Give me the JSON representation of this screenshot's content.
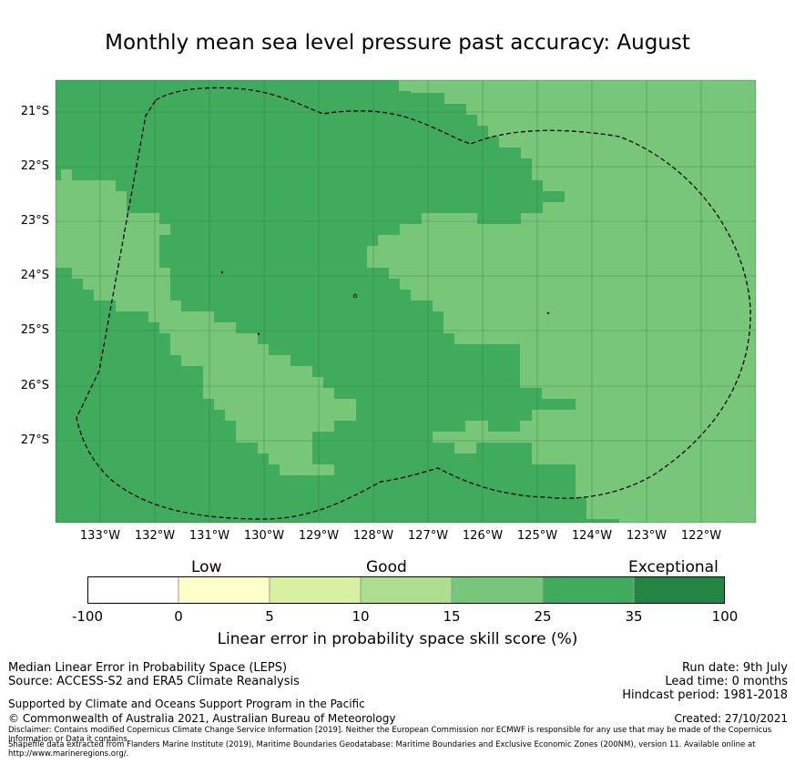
{
  "title": "Monthly mean sea level pressure past accuracy: August",
  "colors": {
    "good_light": "#a8d97e",
    "good_mid": "#78c679",
    "good_dark": "#41ab5d",
    "exceptional": "#238443",
    "low": "#ffffcc",
    "low_good": "#d9f0a3"
  },
  "map": {
    "lon_labels": [
      "133°W",
      "132°W",
      "131°W",
      "130°W",
      "129°W",
      "128°W",
      "127°W",
      "126°W",
      "125°W",
      "124°W",
      "123°W",
      "122°W"
    ],
    "lat_labels": [
      "21°S",
      "22°S",
      "23°S",
      "24°S",
      "25°S",
      "26°S",
      "27°S"
    ],
    "boundary": "dashed maritime boundary (EEZ)"
  },
  "colorbar": {
    "categories": [
      "Low",
      "Good",
      "Exceptional"
    ],
    "ticks": [
      "-100",
      "0",
      "5",
      "10",
      "15",
      "25",
      "35",
      "100"
    ],
    "colors": [
      "#ffffff",
      "#ffffcc",
      "#d9f0a3",
      "#addd8e",
      "#78c679",
      "#41ab5d",
      "#238443"
    ],
    "label": "Linear error in probability space skill score (%)"
  },
  "footer": {
    "line1": "Median Linear Error in Probability Space (LEPS)",
    "line2": "Source: ACCESS-S2 and ERA5 Climate Reanalysis",
    "run_date": "Run date: 9th July",
    "lead_time": "Lead time: 0 months",
    "hindcast": "Hindcast period: 1981-2018",
    "supported": "Supported by Climate and Oceans Support Program in the Pacific",
    "copyright": "© Commonwealth of Australia 2021, Australian Bureau of Meteorology",
    "created": "Created: 27/10/2021",
    "disclaimer": "Disclaimer: Contains modified Copernicus Climate Change Service Information [2019]. Neither the European Commission nor ECMWF is responsible for any use that may be made of the Copernicus Information or Data it contains.",
    "shapefile": "Shapefile data extracted from Flanders Marine Institute (2019), Maritime Boundaries Geodatabase: Maritime Boundaries and Exclusive Economic Zones (200NM), version 11. Available online at http://www.marineregions.org/."
  }
}
